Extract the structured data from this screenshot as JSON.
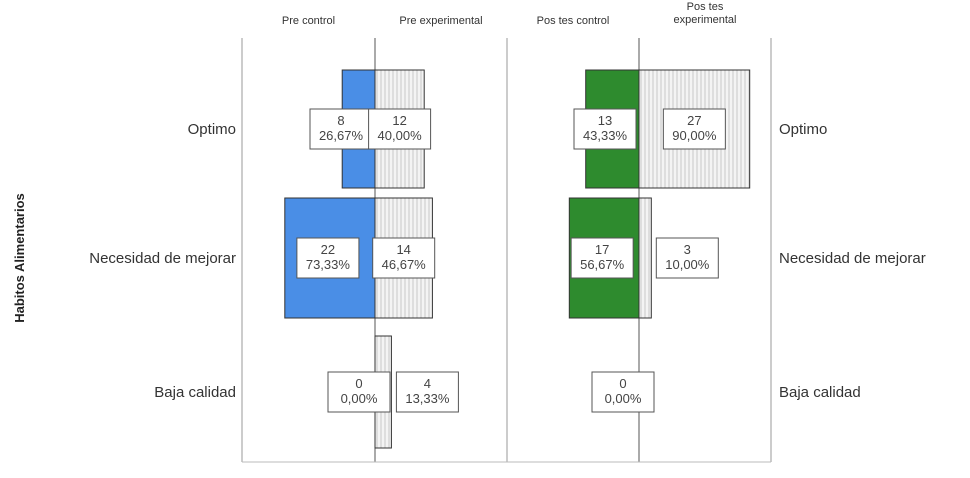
{
  "chart_data": {
    "type": "bar",
    "ylabel": "Habitos Alimentarios",
    "categories": [
      "Optimo",
      "Necesidad de mejorar",
      "Baja calidad"
    ],
    "panels": [
      {
        "name": "control-post-panel",
        "left_header": "Pre control",
        "right_header": "Pre experimental",
        "left_color": "#4a8ee6",
        "right_color": "#f0f0f0",
        "left_values": [
          8,
          22,
          0
        ],
        "right_values": [
          12,
          14,
          4
        ],
        "left_labels": [
          [
            "8",
            "26,67%"
          ],
          [
            "22",
            "73,33%"
          ],
          [
            "0",
            "0,00%"
          ]
        ],
        "right_labels": [
          [
            "12",
            "40,00%"
          ],
          [
            "14",
            "46,67%"
          ],
          [
            "4",
            "13,33%"
          ]
        ]
      },
      {
        "name": "post-panel",
        "left_header": "Pos tes control",
        "right_header": [
          "Pos tes",
          "experimental"
        ],
        "left_color": "#2e8b2e",
        "right_color": "#f0f0f0",
        "left_values": [
          13,
          17,
          0
        ],
        "right_values": [
          27,
          3,
          0
        ],
        "left_labels": [
          [
            "13",
            "43,33%"
          ],
          [
            "17",
            "56,67%"
          ],
          [
            "0",
            "0,00%"
          ]
        ],
        "right_labels": [
          [
            "27",
            "90,00%"
          ],
          [
            "3",
            "10,00%"
          ],
          null
        ]
      }
    ]
  }
}
